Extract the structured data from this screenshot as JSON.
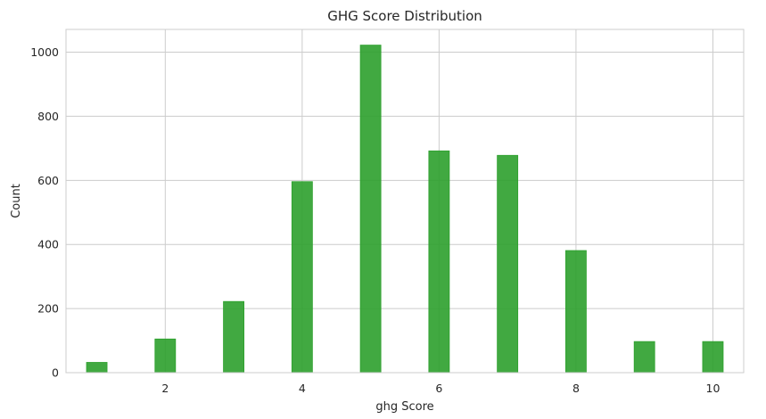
{
  "chart_data": {
    "type": "bar",
    "title": "GHG Score Distribution",
    "xlabel": "ghg Score",
    "ylabel": "Count",
    "xlim": [
      0.55,
      10.45
    ],
    "ylim": [
      0,
      1071
    ],
    "xticks": [
      2,
      4,
      6,
      8,
      10
    ],
    "yticks": [
      0,
      200,
      400,
      600,
      800,
      1000
    ],
    "bin_width": 0.3,
    "grid": true,
    "bar_color": "#2ca02c",
    "bins": [
      {
        "x": 1,
        "value": 32
      },
      {
        "x": 2,
        "value": 105
      },
      {
        "x": 3,
        "value": 222
      },
      {
        "x": 4,
        "value": 596
      },
      {
        "x": 5,
        "value": 1022
      },
      {
        "x": 6,
        "value": 692
      },
      {
        "x": 7,
        "value": 678
      },
      {
        "x": 8,
        "value": 381
      },
      {
        "x": 9,
        "value": 97
      },
      {
        "x": 10,
        "value": 97
      }
    ]
  }
}
